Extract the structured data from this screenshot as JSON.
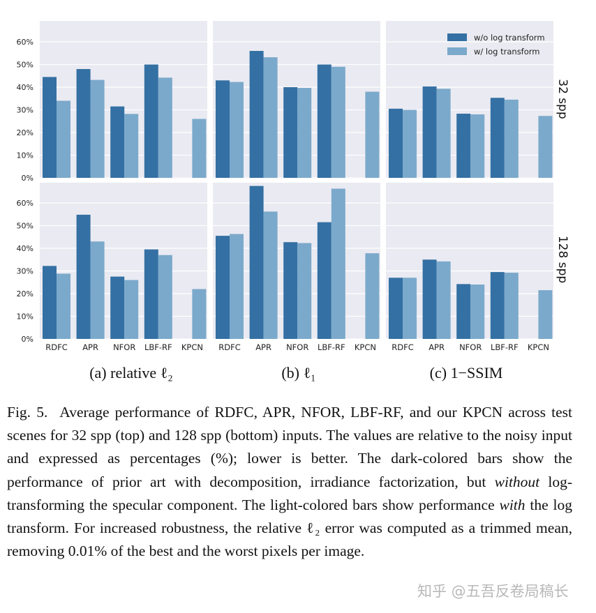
{
  "legend": {
    "dark": "w/o log transform",
    "light": "w/ log transform"
  },
  "colors": {
    "dark": "#3470a3",
    "light": "#7ba9cb",
    "panel_bg": "#eaeaf2",
    "grid": "#ffffff"
  },
  "row_labels": [
    "32 spp",
    "128 spp"
  ],
  "panel_labels": [
    "(a) relative ℓ₂",
    "(b) ℓ₁",
    "(c) 1−SSIM"
  ],
  "chart_data": [
    {
      "type": "bar",
      "row": "32 spp",
      "panel": "(a) relative ℓ2",
      "categories": [
        "RDFC",
        "APR",
        "NFOR",
        "LBF-RF",
        "KPCN"
      ],
      "series": [
        {
          "name": "w/o log transform",
          "values": [
            44.5,
            48,
            31.5,
            50,
            null
          ]
        },
        {
          "name": "w/ log transform",
          "values": [
            34,
            43.2,
            28.2,
            44.2,
            26
          ]
        }
      ],
      "yticks": [
        "0%",
        "10%",
        "20%",
        "30%",
        "40%",
        "50%",
        "60%"
      ],
      "ylim": [
        0,
        68
      ]
    },
    {
      "type": "bar",
      "row": "32 spp",
      "panel": "(b) ℓ1",
      "categories": [
        "RDFC",
        "APR",
        "NFOR",
        "LBF-RF",
        "KPCN"
      ],
      "series": [
        {
          "name": "w/o log transform",
          "values": [
            43,
            56,
            40,
            50,
            null
          ]
        },
        {
          "name": "w/ log transform",
          "values": [
            42.3,
            53.2,
            39.7,
            49,
            38
          ]
        }
      ],
      "ylim": [
        0,
        68
      ]
    },
    {
      "type": "bar",
      "row": "32 spp",
      "panel": "(c) 1−SSIM",
      "categories": [
        "RDFC",
        "APR",
        "NFOR",
        "LBF-RF",
        "KPCN"
      ],
      "series": [
        {
          "name": "w/o log transform",
          "values": [
            30.5,
            40.3,
            28.3,
            35.3,
            null
          ]
        },
        {
          "name": "w/ log transform",
          "values": [
            30,
            39.3,
            28,
            34.5,
            27.3
          ]
        }
      ],
      "ylim": [
        0,
        68
      ]
    },
    {
      "type": "bar",
      "row": "128 spp",
      "panel": "(a) relative ℓ2",
      "categories": [
        "RDFC",
        "APR",
        "NFOR",
        "LBF-RF",
        "KPCN"
      ],
      "series": [
        {
          "name": "w/o log transform",
          "values": [
            32.2,
            54.8,
            27.5,
            39.5,
            null
          ]
        },
        {
          "name": "w/ log transform",
          "values": [
            28.8,
            43,
            26,
            37,
            22
          ]
        }
      ],
      "yticks": [
        "0%",
        "10%",
        "20%",
        "30%",
        "40%",
        "50%",
        "60%"
      ],
      "ylim": [
        0,
        68
      ]
    },
    {
      "type": "bar",
      "row": "128 spp",
      "panel": "(b) ℓ1",
      "categories": [
        "RDFC",
        "APR",
        "NFOR",
        "LBF-RF",
        "KPCN"
      ],
      "series": [
        {
          "name": "w/o log transform",
          "values": [
            45.5,
            67.5,
            42.7,
            51.5,
            null
          ]
        },
        {
          "name": "w/ log transform",
          "values": [
            46.3,
            56.2,
            42.3,
            66.3,
            37.8
          ]
        }
      ],
      "ylim": [
        0,
        68
      ]
    },
    {
      "type": "bar",
      "row": "128 spp",
      "panel": "(c) 1−SSIM",
      "categories": [
        "RDFC",
        "APR",
        "NFOR",
        "LBF-RF",
        "KPCN"
      ],
      "series": [
        {
          "name": "w/o log transform",
          "values": [
            27,
            35,
            24.2,
            29.5,
            null
          ]
        },
        {
          "name": "w/ log transform",
          "values": [
            27,
            34.2,
            24,
            29.2,
            21.5
          ]
        }
      ],
      "ylim": [
        0,
        68
      ]
    }
  ],
  "caption": {
    "fig_no": "Fig. 5.",
    "p1": "Average performance of RDFC, APR, NFOR, LBF-RF, and our KPCN across test scenes for 32 spp (top) and 128 spp (bottom) inputs. The values are relative to the noisy input and expressed as percentages (%); lower is better. The dark-colored bars show the performance of prior art with decomposition, irradiance factorization, but ",
    "em1": "without",
    "p2": " log-transforming the specular component. The light-colored bars show performance ",
    "em2": "with",
    "p3": " the log transform. For increased robustness, the relative ",
    "l2": "ℓ₂",
    "p4": " error was computed as a trimmed mean, removing 0.01% of the best and the worst pixels per image."
  },
  "watermark": "知乎 @五吾反卷局稿长"
}
